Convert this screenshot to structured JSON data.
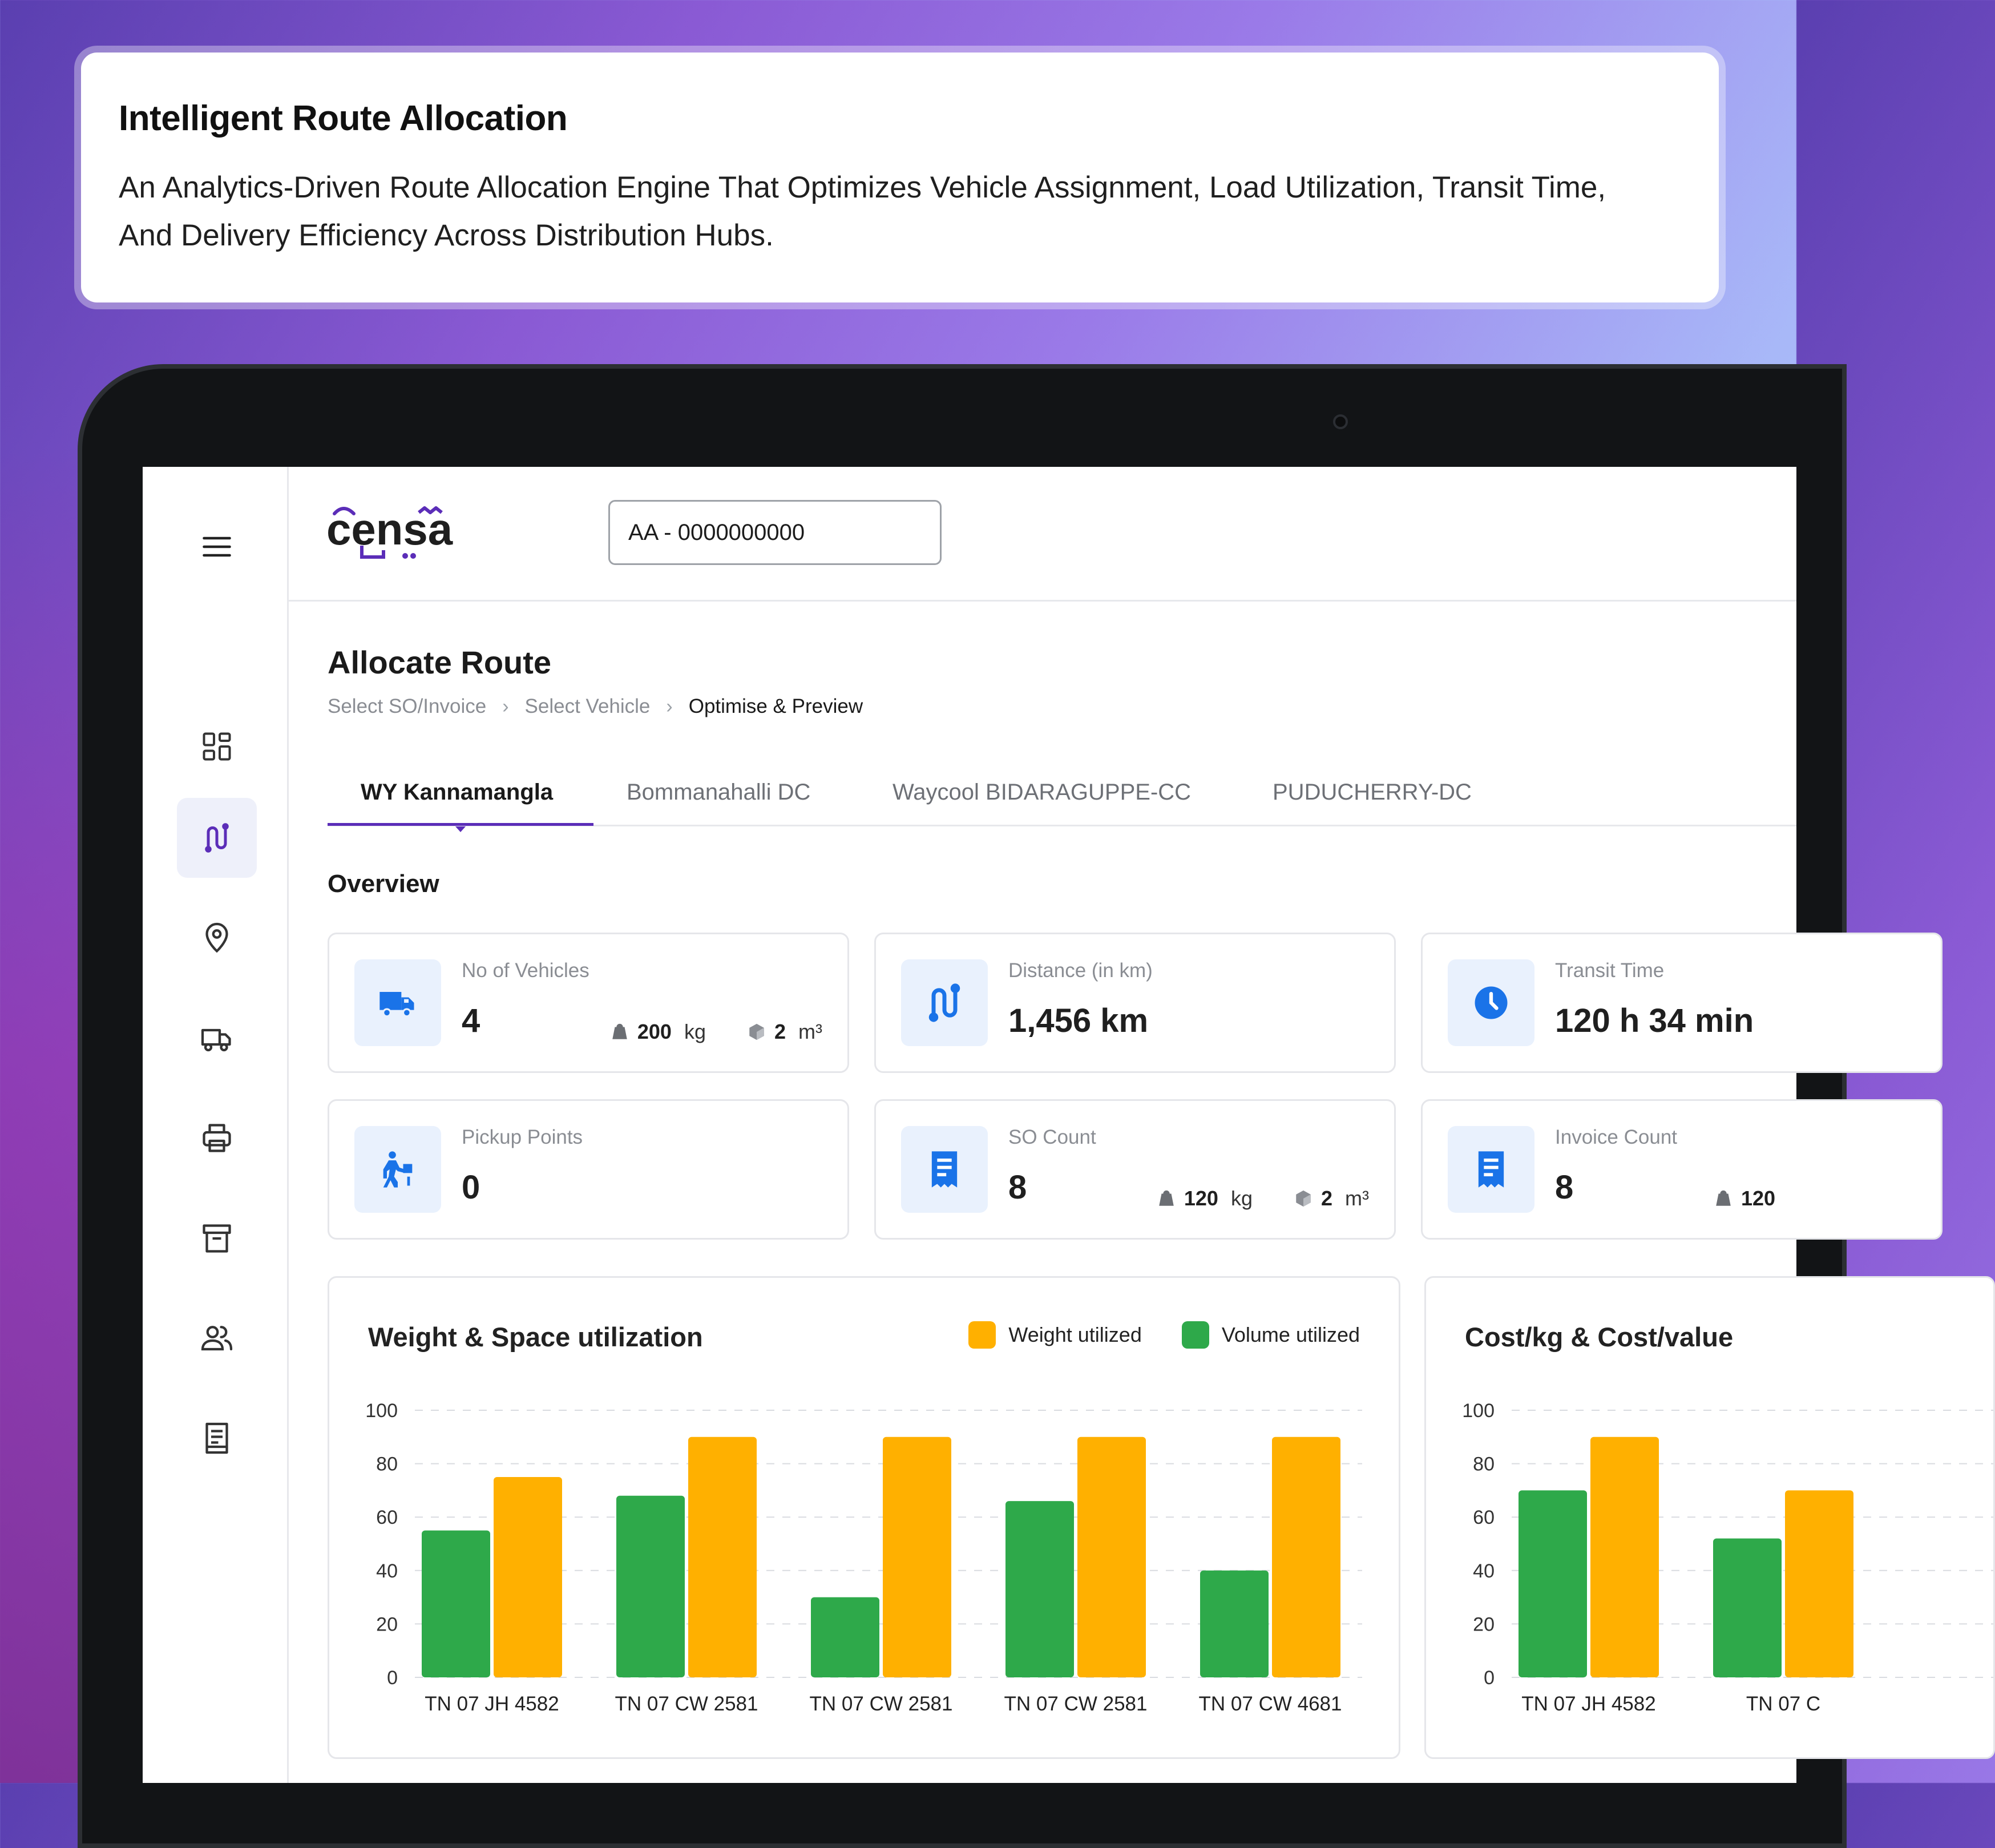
{
  "hero": {
    "title": "Intelligent Route Allocation",
    "description": "An Analytics-Driven Route Allocation Engine That Optimizes Vehicle Assignment, Load Utilization, Transit Time, And Delivery Efficiency Across Distribution Hubs."
  },
  "brand": {
    "name": "censa",
    "accent": "#5b2db8"
  },
  "search": {
    "value": "AA - 0000000000"
  },
  "sidebar": {
    "items": [
      {
        "name": "menu-icon"
      },
      {
        "name": "dashboard-icon"
      },
      {
        "name": "route-icon",
        "active": true
      },
      {
        "name": "location-pin-icon"
      },
      {
        "name": "truck-icon"
      },
      {
        "name": "printer-icon"
      },
      {
        "name": "archive-icon"
      },
      {
        "name": "users-icon"
      },
      {
        "name": "document-icon"
      }
    ]
  },
  "page": {
    "title": "Allocate Route",
    "breadcrumbs": [
      "Select SO/Invoice",
      "Select Vehicle",
      "Optimise & Preview"
    ],
    "tabs": [
      "WY Kannamangla",
      "Bommanahalli DC",
      "Waycool BIDARAGUPPE-CC",
      "PUDUCHERRY-DC"
    ],
    "active_tab": 0,
    "section_title": "Overview"
  },
  "stats": [
    {
      "label": "No of Vehicles",
      "value": "4",
      "weight": "200",
      "weight_unit": "kg",
      "volume": "2",
      "volume_unit": "m³",
      "icon": "truck-icon"
    },
    {
      "label": "Distance (in km)",
      "value": "1,456 km",
      "icon": "route-icon"
    },
    {
      "label": "Transit Time",
      "value": "120 h 34 min",
      "icon": "clock-icon"
    },
    {
      "label": "Pickup Points",
      "value": "0",
      "icon": "person-loading-icon"
    },
    {
      "label": "SO Count",
      "value": "8",
      "weight": "120",
      "weight_unit": "kg",
      "volume": "2",
      "volume_unit": "m³",
      "icon": "invoice-icon"
    },
    {
      "label": "Invoice Count",
      "value": "8",
      "weight": "120",
      "icon": "invoice-icon"
    }
  ],
  "colors": {
    "green": "#2ea94a",
    "orange": "#ffb000",
    "icon_blue": "#1a73e8",
    "icon_bg": "#e9f1fd"
  },
  "chart_data": [
    {
      "type": "bar",
      "title": "Weight & Space utilization",
      "categories": [
        "TN 07 JH 4582",
        "TN 07 CW 2581",
        "TN 07 CW 2581",
        "TN 07 CW 2581",
        "TN 07 CW 4681"
      ],
      "series": [
        {
          "name": "Volume utilized",
          "values": [
            55,
            68,
            30,
            66,
            40
          ],
          "color": "#2ea94a"
        },
        {
          "name": "Weight utilized",
          "values": [
            75,
            90,
            90,
            90,
            90
          ],
          "color": "#ffb000"
        }
      ],
      "legend": [
        {
          "name": "Weight utilized",
          "color": "#ffb000"
        },
        {
          "name": "Volume utilized",
          "color": "#2ea94a"
        }
      ],
      "yticks": [
        "100",
        "80",
        "60",
        "40",
        "20",
        "0"
      ],
      "ylim": [
        0,
        100
      ],
      "grid": "dashed",
      "legend_position": "top-right"
    },
    {
      "type": "bar",
      "title": "Cost/kg & Cost/value",
      "categories": [
        "TN 07 JH 4582",
        "TN 07 C"
      ],
      "series": [
        {
          "values": [
            70,
            52
          ],
          "color": "#2ea94a"
        },
        {
          "values": [
            90,
            70
          ],
          "color": "#ffb000"
        }
      ],
      "yticks": [
        "100",
        "80",
        "60",
        "40",
        "20",
        "0"
      ],
      "ylim": [
        0,
        100
      ],
      "grid": "dashed"
    }
  ]
}
